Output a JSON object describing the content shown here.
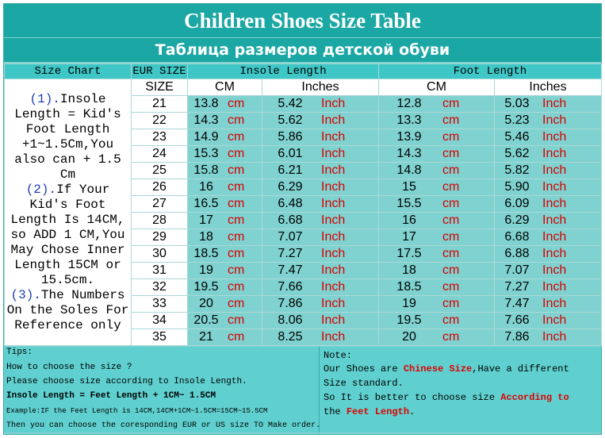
{
  "title": "Children Shoes Size Table",
  "subtitle": "Таблица размеров детской обуви",
  "header": {
    "size_chart": "Size Chart",
    "eur_size": "EUR SIZE",
    "insole_length": "Insole Length",
    "foot_length": "Foot Length",
    "size": "SIZE",
    "cm": "CM",
    "inches": "Inches",
    "cm_unit": "cm",
    "inch_unit": "Inch"
  },
  "notes": {
    "n1_num": "(1).",
    "n1_text": "Insole Length = Kid's Foot Length +1~1.5Cm,You also can + 1.5 Cm",
    "n2_num": "(2).",
    "n2_text": "If Your Kid's Foot Length Is 14CM, so ADD 1 CM,You May Chose Inner Length 15CM or 15.5cm.",
    "n3_num": "(3).",
    "n3_text": "The Numbers On the Soles For Reference only"
  },
  "rows": [
    {
      "eur": "21",
      "insole_cm": "13.8",
      "insole_in": "5.42",
      "foot_cm": "12.8",
      "foot_in": "5.03"
    },
    {
      "eur": "22",
      "insole_cm": "14.3",
      "insole_in": "5.62",
      "foot_cm": "13.3",
      "foot_in": "5.23"
    },
    {
      "eur": "23",
      "insole_cm": "14.9",
      "insole_in": "5.86",
      "foot_cm": "13.9",
      "foot_in": "5.46"
    },
    {
      "eur": "24",
      "insole_cm": "15.3",
      "insole_in": "6.01",
      "foot_cm": "14.3",
      "foot_in": "5.62"
    },
    {
      "eur": "25",
      "insole_cm": "15.8",
      "insole_in": "6.21",
      "foot_cm": "14.8",
      "foot_in": "5.82"
    },
    {
      "eur": "26",
      "insole_cm": "16",
      "insole_in": "6.29",
      "foot_cm": "15",
      "foot_in": "5.90"
    },
    {
      "eur": "27",
      "insole_cm": "16.5",
      "insole_in": "6.48",
      "foot_cm": "15.5",
      "foot_in": "6.09"
    },
    {
      "eur": "28",
      "insole_cm": "17",
      "insole_in": "6.68",
      "foot_cm": "16",
      "foot_in": "6.29"
    },
    {
      "eur": "29",
      "insole_cm": "18",
      "insole_in": "7.07",
      "foot_cm": "17",
      "foot_in": "6.68"
    },
    {
      "eur": "30",
      "insole_cm": "18.5",
      "insole_in": "7.27",
      "foot_cm": "17.5",
      "foot_in": "6.88"
    },
    {
      "eur": "31",
      "insole_cm": "19",
      "insole_in": "7.47",
      "foot_cm": "18",
      "foot_in": "7.07"
    },
    {
      "eur": "32",
      "insole_cm": "19.5",
      "insole_in": "7.66",
      "foot_cm": "18.5",
      "foot_in": "7.27"
    },
    {
      "eur": "33",
      "insole_cm": "20",
      "insole_in": "7.86",
      "foot_cm": "19",
      "foot_in": "7.47"
    },
    {
      "eur": "34",
      "insole_cm": "20.5",
      "insole_in": "8.06",
      "foot_cm": "19.5",
      "foot_in": "7.66"
    },
    {
      "eur": "35",
      "insole_cm": "21",
      "insole_in": "8.25",
      "foot_cm": "20",
      "foot_in": "7.86"
    }
  ],
  "tips": {
    "l1": "Tips:",
    "l2": "How to choose the size ?",
    "l3": "Please choose size according to Insole Length.",
    "l4": "Insole Length = Feet Length + 1CM~ 1.5CM",
    "l5": "Example:IF the Feet Length is 14CM,14CM+1CM~1.5CM=15CM~15.5CM",
    "l6": "Then you can choose the coresponding EUR or US size TO Make order."
  },
  "note": {
    "l1": "Note:",
    "l2a": "Our Shoes are ",
    "l2b": "Chinese Size",
    "l2c": ",Have a different",
    "l3": "Size standard.",
    "l4a": "So It is better to choose size ",
    "l4b": "According to",
    "l5a": "the ",
    "l5b": "Feet Length",
    "l5c": "."
  },
  "colors": {
    "accent": "#1ba7a3",
    "header": "#3fc7c7",
    "unit_red": "#d80000",
    "note_blue": "#1a3db5"
  }
}
